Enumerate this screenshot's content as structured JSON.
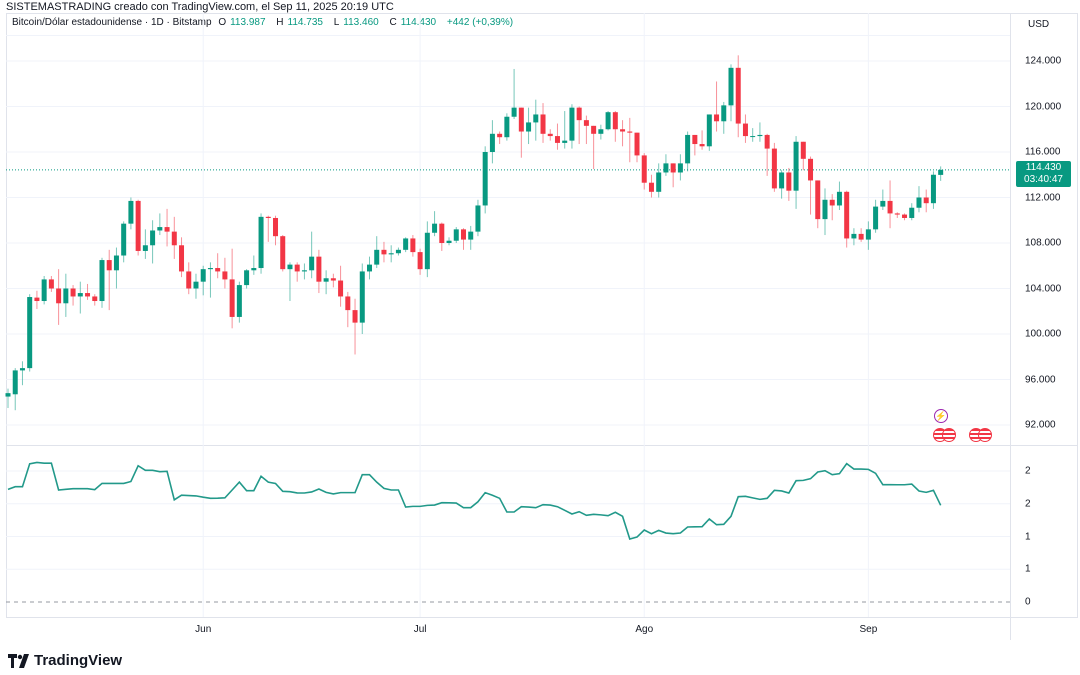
{
  "caption": "SISTEMASTRADING creado con TradingView.com, el Sep 11, 2025 20:19 UTC",
  "legend": {
    "symbol": "Bitcoin/Dólar estadounidense · 1D · Bitstamp",
    "o_label": "O",
    "o": "113.987",
    "h_label": "H",
    "h": "114.735",
    "l_label": "L",
    "l": "113.460",
    "c_label": "C",
    "c": "114.430",
    "change": "+442 (+0,39%)"
  },
  "currency": "USD",
  "price_tag": {
    "price": "114.430",
    "countdown": "03:40:47"
  },
  "logo_text": "TradingView",
  "events": [
    {
      "icon": "lightning-icon"
    },
    {
      "icon": "us-flag-icon"
    },
    {
      "icon": "us-flag-icon"
    },
    {
      "icon": "us-flag-icon"
    }
  ],
  "colors": {
    "up": "#089981",
    "down": "#F23645",
    "indicator": "#22998a",
    "grid": "#f0f3fa"
  },
  "chart_data": [
    {
      "type": "candlestick",
      "title": "Bitcoin/Dólar estadounidense · 1D · Bitstamp",
      "units": "USD (thousands)",
      "ylim": [
        90,
        126
      ],
      "y_ticks": [
        {
          "value": 124,
          "label": "124.000"
        },
        {
          "value": 120,
          "label": "120.000"
        },
        {
          "value": 116,
          "label": "116.000"
        },
        {
          "value": 112,
          "label": "112.000"
        },
        {
          "value": 108,
          "label": "108.000"
        },
        {
          "value": 104,
          "label": "104.000"
        },
        {
          "value": 100,
          "label": "100.000"
        },
        {
          "value": 96,
          "label": "96.000"
        },
        {
          "value": 92,
          "label": "92.000"
        }
      ],
      "x_ticks": [
        {
          "label": "Jun",
          "index": 27
        },
        {
          "label": "Jul",
          "index": 57
        },
        {
          "label": "Ago",
          "index": 88
        },
        {
          "label": "Sep",
          "index": 119
        }
      ],
      "grid": true,
      "last_price": 114.43,
      "ohlc": [
        [
          94.5,
          95.2,
          93.5,
          94.8
        ],
        [
          94.7,
          97.0,
          93.3,
          96.8
        ],
        [
          96.8,
          97.6,
          95.5,
          97.0
        ],
        [
          97.0,
          103.5,
          96.7,
          103.25
        ],
        [
          103.2,
          103.8,
          102.2,
          102.9
        ],
        [
          102.9,
          105.1,
          102.6,
          104.8
        ],
        [
          104.8,
          105.1,
          103.7,
          104.0
        ],
        [
          104.0,
          105.7,
          100.8,
          102.7
        ],
        [
          102.7,
          105.3,
          101.5,
          104.0
        ],
        [
          104.0,
          104.3,
          102.5,
          103.3
        ],
        [
          103.3,
          104.6,
          101.8,
          103.6
        ],
        [
          103.6,
          104.4,
          103.0,
          103.3
        ],
        [
          103.3,
          103.5,
          102.5,
          102.9
        ],
        [
          102.9,
          106.7,
          102.3,
          106.5
        ],
        [
          106.5,
          107.4,
          102.1,
          105.6
        ],
        [
          105.6,
          107.6,
          104.0,
          106.9
        ],
        [
          106.9,
          109.9,
          106.3,
          109.7
        ],
        [
          109.7,
          112.0,
          109.2,
          111.7
        ],
        [
          111.7,
          111.8,
          106.9,
          107.3
        ],
        [
          107.3,
          109.2,
          106.6,
          107.8
        ],
        [
          107.8,
          110.0,
          106.2,
          109.1
        ],
        [
          109.1,
          110.6,
          108.7,
          109.4
        ],
        [
          109.4,
          111.0,
          107.7,
          109.0
        ],
        [
          109.0,
          110.3,
          106.6,
          107.8
        ],
        [
          107.8,
          108.5,
          105.0,
          105.5
        ],
        [
          105.5,
          106.3,
          103.5,
          104.0
        ],
        [
          104.0,
          105.3,
          103.1,
          104.6
        ],
        [
          104.6,
          106.0,
          103.4,
          105.7
        ],
        [
          105.7,
          106.3,
          103.2,
          105.8
        ],
        [
          105.8,
          107.1,
          104.9,
          105.5
        ],
        [
          105.5,
          106.7,
          104.0,
          104.8
        ],
        [
          104.8,
          107.5,
          100.5,
          101.5
        ],
        [
          101.5,
          104.6,
          101.0,
          104.3
        ],
        [
          104.3,
          105.7,
          104.0,
          105.6
        ],
        [
          105.6,
          106.9,
          105.2,
          105.8
        ],
        [
          105.8,
          110.6,
          105.3,
          110.3
        ],
        [
          110.3,
          110.4,
          108.1,
          110.2
        ],
        [
          110.2,
          110.4,
          107.8,
          108.6
        ],
        [
          108.6,
          108.7,
          105.5,
          105.7
        ],
        [
          105.7,
          106.3,
          102.9,
          106.1
        ],
        [
          106.1,
          106.3,
          104.6,
          105.5
        ],
        [
          105.5,
          106.2,
          104.8,
          105.6
        ],
        [
          105.6,
          109.0,
          104.9,
          106.8
        ],
        [
          106.8,
          107.4,
          103.6,
          104.6
        ],
        [
          104.6,
          105.6,
          103.5,
          104.9
        ],
        [
          104.9,
          105.3,
          104.1,
          104.7
        ],
        [
          104.7,
          106.0,
          102.4,
          103.3
        ],
        [
          103.3,
          103.7,
          100.6,
          102.1
        ],
        [
          102.1,
          103.1,
          98.2,
          101.0
        ],
        [
          101.0,
          106.2,
          100.0,
          105.5
        ],
        [
          105.5,
          106.8,
          104.8,
          106.1
        ],
        [
          106.1,
          108.6,
          105.8,
          107.4
        ],
        [
          107.4,
          108.1,
          106.3,
          107.0
        ],
        [
          107.0,
          107.8,
          106.3,
          107.1
        ],
        [
          107.1,
          107.6,
          106.9,
          107.4
        ],
        [
          107.4,
          108.5,
          107.2,
          108.4
        ],
        [
          108.4,
          108.7,
          106.8,
          107.2
        ],
        [
          107.2,
          107.5,
          105.2,
          105.7
        ],
        [
          105.7,
          109.9,
          105.0,
          108.9
        ],
        [
          108.9,
          110.8,
          108.6,
          109.7
        ],
        [
          109.7,
          109.8,
          107.3,
          108.0
        ],
        [
          108.0,
          108.5,
          107.8,
          108.2
        ],
        [
          108.2,
          109.4,
          108.0,
          109.2
        ],
        [
          109.2,
          109.3,
          107.4,
          108.3
        ],
        [
          108.3,
          109.5,
          107.4,
          109.0
        ],
        [
          109.0,
          111.8,
          108.6,
          111.3
        ],
        [
          111.3,
          116.5,
          110.6,
          116.0
        ],
        [
          116.0,
          118.8,
          115.0,
          117.6
        ],
        [
          117.6,
          117.8,
          116.7,
          117.3
        ],
        [
          117.3,
          119.4,
          117.0,
          119.1
        ],
        [
          119.1,
          123.3,
          118.9,
          119.9
        ],
        [
          119.9,
          119.9,
          115.5,
          117.8
        ],
        [
          117.8,
          119.9,
          116.7,
          118.6
        ],
        [
          118.6,
          120.6,
          117.0,
          119.3
        ],
        [
          119.3,
          120.3,
          116.8,
          117.6
        ],
        [
          117.6,
          118.0,
          117.0,
          117.4
        ],
        [
          117.4,
          118.5,
          116.2,
          116.8
        ],
        [
          116.8,
          119.6,
          116.3,
          117.0
        ],
        [
          117.0,
          120.2,
          116.3,
          119.9
        ],
        [
          119.9,
          120.0,
          116.7,
          118.8
        ],
        [
          118.8,
          119.2,
          116.7,
          118.3
        ],
        [
          118.3,
          118.3,
          114.5,
          117.6
        ],
        [
          117.6,
          118.4,
          117.1,
          118.0
        ],
        [
          118.0,
          119.6,
          117.9,
          119.5
        ],
        [
          119.5,
          119.6,
          116.9,
          118.0
        ],
        [
          118.0,
          118.8,
          116.5,
          117.8
        ],
        [
          117.8,
          119.0,
          115.1,
          117.7
        ],
        [
          117.7,
          117.7,
          115.1,
          115.7
        ],
        [
          115.7,
          115.9,
          112.7,
          113.3
        ],
        [
          113.3,
          114.0,
          112.0,
          112.5
        ],
        [
          112.5,
          115.0,
          112.0,
          114.2
        ],
        [
          114.2,
          115.8,
          113.9,
          115.0
        ],
        [
          115.0,
          115.0,
          112.9,
          114.2
        ],
        [
          114.2,
          115.8,
          113.5,
          115.0
        ],
        [
          115.0,
          117.8,
          114.3,
          117.5
        ],
        [
          117.5,
          117.5,
          115.7,
          116.7
        ],
        [
          116.7,
          117.9,
          116.2,
          116.5
        ],
        [
          116.5,
          119.3,
          116.1,
          119.3
        ],
        [
          119.3,
          122.2,
          117.8,
          118.7
        ],
        [
          118.7,
          120.4,
          117.6,
          120.1
        ],
        [
          120.1,
          123.7,
          118.7,
          123.4
        ],
        [
          123.4,
          124.5,
          117.3,
          118.5
        ],
        [
          118.5,
          119.3,
          116.8,
          117.4
        ],
        [
          117.4,
          118.1,
          116.9,
          117.4
        ],
        [
          117.4,
          118.6,
          116.9,
          117.5
        ],
        [
          117.5,
          117.6,
          113.9,
          116.3
        ],
        [
          116.3,
          116.8,
          112.5,
          112.8
        ],
        [
          112.8,
          114.4,
          111.9,
          114.2
        ],
        [
          114.2,
          114.6,
          111.7,
          112.6
        ],
        [
          112.6,
          117.4,
          111.0,
          116.9
        ],
        [
          116.9,
          116.9,
          114.4,
          115.4
        ],
        [
          115.4,
          115.6,
          110.5,
          113.5
        ],
        [
          113.5,
          113.5,
          109.3,
          110.1
        ],
        [
          110.1,
          112.8,
          108.7,
          111.8
        ],
        [
          111.8,
          112.3,
          110.0,
          111.3
        ],
        [
          111.3,
          113.4,
          110.9,
          112.5
        ],
        [
          112.5,
          112.6,
          107.6,
          108.4
        ],
        [
          108.4,
          109.3,
          107.8,
          108.8
        ],
        [
          108.8,
          109.3,
          108.1,
          108.3
        ],
        [
          108.3,
          109.9,
          107.4,
          109.2
        ],
        [
          109.2,
          111.8,
          108.9,
          111.2
        ],
        [
          111.2,
          112.7,
          110.9,
          111.7
        ],
        [
          111.7,
          113.5,
          109.3,
          110.6
        ],
        [
          110.6,
          110.7,
          110.2,
          110.5
        ],
        [
          110.5,
          110.6,
          110.0,
          110.2
        ],
        [
          110.2,
          111.5,
          110.0,
          111.1
        ],
        [
          111.1,
          113.0,
          110.7,
          112.0
        ],
        [
          112.0,
          112.7,
          110.7,
          111.5
        ],
        [
          111.5,
          114.3,
          111.0,
          114.0
        ],
        [
          113.987,
          114.735,
          113.46,
          114.43
        ]
      ]
    },
    {
      "type": "line",
      "title": "indicator",
      "ylim": [
        0,
        2.3
      ],
      "y_ticks": [
        {
          "value": 2.0,
          "label": "2"
        },
        {
          "value": 1.5,
          "label": "2"
        },
        {
          "value": 1.0,
          "label": "1"
        },
        {
          "value": 0.5,
          "label": "1"
        },
        {
          "value": 0,
          "label": "0"
        }
      ],
      "values": [
        1.72,
        1.76,
        1.76,
        2.11,
        2.13,
        2.12,
        2.12,
        1.71,
        1.72,
        1.73,
        1.73,
        1.73,
        1.715,
        1.81,
        1.81,
        1.81,
        1.81,
        1.84,
        2.08,
        2.01,
        2.01,
        1.99,
        1.995,
        1.56,
        1.63,
        1.625,
        1.62,
        1.6,
        1.583,
        1.585,
        1.59,
        1.71,
        1.83,
        1.7,
        1.7,
        1.92,
        1.83,
        1.81,
        1.69,
        1.684,
        1.665,
        1.664,
        1.68,
        1.725,
        1.674,
        1.65,
        1.67,
        1.67,
        1.67,
        1.944,
        1.944,
        1.83,
        1.735,
        1.71,
        1.71,
        1.45,
        1.46,
        1.46,
        1.475,
        1.48,
        1.516,
        1.515,
        1.51,
        1.44,
        1.44,
        1.53,
        1.669,
        1.63,
        1.583,
        1.374,
        1.374,
        1.455,
        1.45,
        1.44,
        1.486,
        1.48,
        1.455,
        1.4,
        1.344,
        1.379,
        1.323,
        1.338,
        1.33,
        1.318,
        1.369,
        1.308,
        0.962,
        0.992,
        1.099,
        1.043,
        1.094,
        1.053,
        1.043,
        1.053,
        1.145,
        1.148,
        1.15,
        1.267,
        1.18,
        1.186,
        1.308,
        1.608,
        1.613,
        1.59,
        1.567,
        1.583,
        1.705,
        1.695,
        1.664,
        1.852,
        1.857,
        1.883,
        1.985,
        2.005,
        1.944,
        1.959,
        2.112,
        2.03,
        2.03,
        2.025,
        1.965,
        1.791,
        1.791,
        1.79,
        1.79,
        1.8,
        1.695,
        1.674,
        1.705,
        1.476
      ]
    }
  ]
}
